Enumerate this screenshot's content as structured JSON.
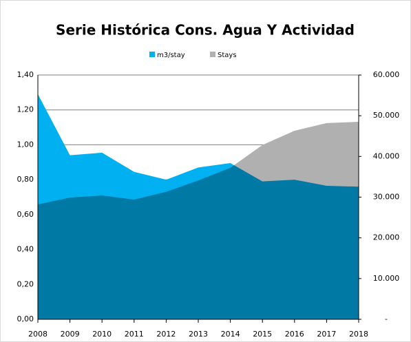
{
  "chart_data": {
    "type": "area",
    "title": "Serie Histórica Cons. Agua Y Actividad",
    "categories": [
      "2008",
      "2009",
      "2010",
      "2011",
      "2012",
      "2013",
      "2014",
      "2015",
      "2016",
      "2017",
      "2018"
    ],
    "series": [
      {
        "name": "m3/stay",
        "color": "#00b0f0",
        "values": [
          1.29,
          0.94,
          0.955,
          0.845,
          0.8,
          0.87,
          0.895,
          0.79,
          0.8,
          0.765,
          0.76
        ]
      },
      {
        "name": "Stays",
        "color": "#b0b0b0",
        "axis": "y2",
        "values": [
          28200,
          29900,
          30400,
          29400,
          31300,
          34100,
          37200,
          42800,
          46300,
          48200,
          48500
        ]
      }
    ],
    "ylim": [
      0,
      1.4
    ],
    "yticks": [
      {
        "value": 0,
        "label": "0,00"
      },
      {
        "value": 0.2,
        "label": "0,20"
      },
      {
        "value": 0.4,
        "label": "0,40"
      },
      {
        "value": 0.6,
        "label": "0,60"
      },
      {
        "value": 0.8,
        "label": "0,80"
      },
      {
        "value": 1.0,
        "label": "1,00"
      },
      {
        "value": 1.2,
        "label": "1,20"
      },
      {
        "value": 1.4,
        "label": "1,40"
      }
    ],
    "y2lim": [
      0,
      60000
    ],
    "y2ticks": [
      {
        "value": 0,
        "label": "-"
      },
      {
        "value": 10000,
        "label": "10.000"
      },
      {
        "value": 20000,
        "label": "20.000"
      },
      {
        "value": 30000,
        "label": "30.000"
      },
      {
        "value": 40000,
        "label": "40.000"
      },
      {
        "value": 50000,
        "label": "50.000"
      },
      {
        "value": 60000,
        "label": "60.000"
      }
    ],
    "grid": true,
    "legend": "top"
  }
}
